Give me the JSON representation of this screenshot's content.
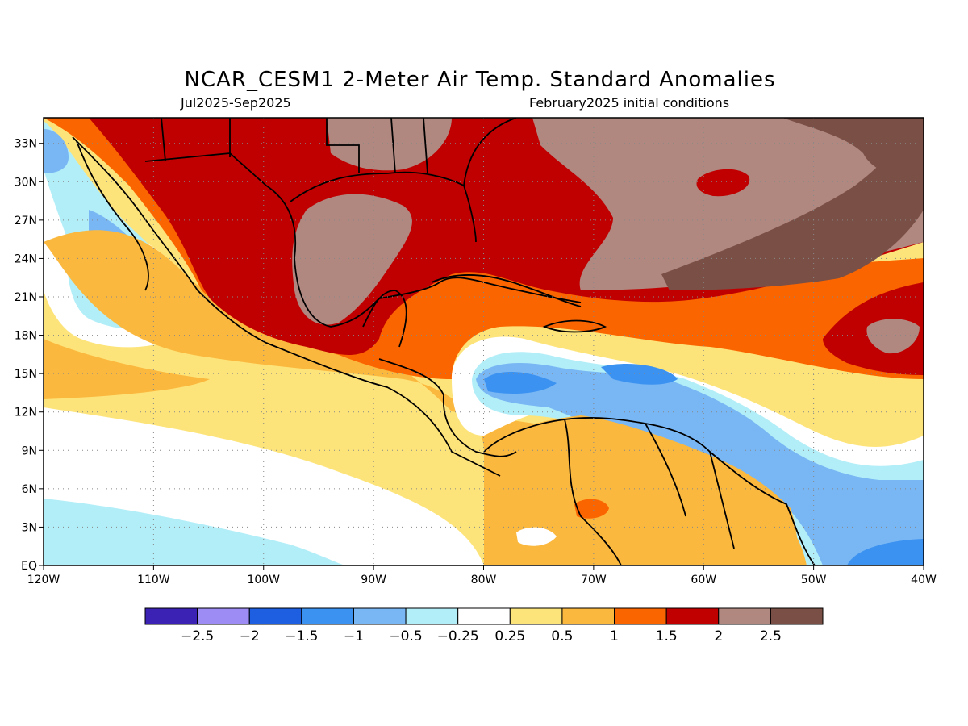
{
  "header": {
    "title": "NCAR_CESM1 2-Meter Air Temp. Standard Anomalies",
    "period": "Jul2025-Sep2025",
    "initial_conditions": "February2025 initial conditions"
  },
  "axes": {
    "lon_labels": [
      "120W",
      "110W",
      "100W",
      "90W",
      "80W",
      "70W",
      "60W",
      "50W",
      "40W"
    ],
    "lat_labels": [
      "EQ",
      "3N",
      "6N",
      "9N",
      "12N",
      "15N",
      "18N",
      "21N",
      "24N",
      "27N",
      "30N",
      "33N"
    ],
    "lon_range": [
      -120,
      -40
    ],
    "lat_range": [
      0,
      35
    ]
  },
  "colorbar": {
    "colors": [
      "#3b22b5",
      "#9c8cf4",
      "#1d5fe0",
      "#3c92f0",
      "#78b6f4",
      "#b2eef8",
      "#ffffff",
      "#fde47a",
      "#fbb83e",
      "#fb6500",
      "#c00000",
      "#b08880",
      "#7a4f45"
    ],
    "labels": [
      "-2.5",
      "-2",
      "-1.5",
      "-1",
      "-0.5",
      "-0.25",
      "0.25",
      "0.5",
      "1",
      "1.5",
      "2",
      "2.5"
    ]
  },
  "map_colors": {
    "cold_neg1": "#3c92f0",
    "cold_neg05": "#78b6f4",
    "cold_neg025": "#b2eef8",
    "neutral": "#ffffff",
    "warm_025": "#fde47a",
    "warm_05": "#fbb83e",
    "warm_1": "#fb6500",
    "warm_15": "#c00000",
    "warm_2": "#b08880",
    "warm_25": "#7a4f45",
    "coast": "#000000"
  }
}
